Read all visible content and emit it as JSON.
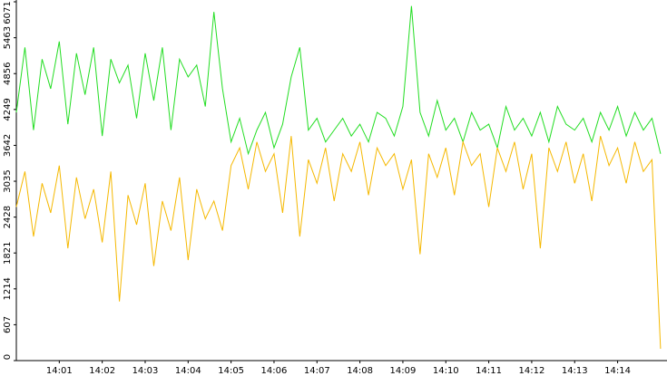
{
  "chart_data": {
    "type": "line",
    "x": [
      0,
      0.2,
      0.4,
      0.6,
      0.8,
      1,
      1.2,
      1.4,
      1.6,
      1.8,
      2,
      2.2,
      2.4,
      2.6,
      2.8,
      3,
      3.2,
      3.4,
      3.6,
      3.8,
      4,
      4.2,
      4.4,
      4.6,
      4.8,
      5,
      5.2,
      5.4,
      5.6,
      5.8,
      6,
      6.2,
      6.4,
      6.6,
      6.8,
      7,
      7.2,
      7.4,
      7.6,
      7.8,
      8,
      8.2,
      8.4,
      8.6,
      8.8,
      9,
      9.2,
      9.4,
      9.6,
      9.8,
      10,
      10.2,
      10.4,
      10.6,
      10.8,
      11,
      11.2,
      11.4,
      11.6,
      11.8,
      12,
      12.2,
      12.4,
      12.6,
      12.8,
      13,
      13.2,
      13.4,
      13.6,
      13.8,
      14,
      14.2,
      14.4,
      14.6,
      14.8,
      15
    ],
    "series": [
      {
        "color": "#22dd22",
        "values": [
          4200,
          5300,
          3900,
          5100,
          4600,
          5400,
          4000,
          5200,
          4500,
          5300,
          3800,
          5100,
          4700,
          5000,
          4100,
          5200,
          4400,
          5300,
          3900,
          5100,
          4800,
          5000,
          4300,
          5900,
          4600,
          3700,
          4100,
          3500,
          3900,
          4200,
          3600,
          4000,
          4800,
          5300,
          3900,
          4100,
          3700,
          3900,
          4100,
          3800,
          4000,
          3700,
          4200,
          4100,
          3800,
          4300,
          6000,
          4200,
          3800,
          4400,
          3900,
          4100,
          3700,
          4200,
          3900,
          4000,
          3600,
          4300,
          3900,
          4100,
          3800,
          4200,
          3700,
          4300,
          4000,
          3900,
          4100,
          3700,
          4200,
          3900,
          4300,
          3800,
          4200,
          3900,
          4100,
          3500
        ]
      },
      {
        "color": "#f5b800",
        "values": [
          2600,
          3200,
          2100,
          3000,
          2500,
          3300,
          1900,
          3100,
          2400,
          2900,
          2000,
          3200,
          1000,
          2800,
          2300,
          3000,
          1600,
          2700,
          2200,
          3100,
          1700,
          2900,
          2400,
          2700,
          2200,
          3300,
          3600,
          2900,
          3700,
          3200,
          3500,
          2500,
          3800,
          2100,
          3400,
          3000,
          3600,
          2700,
          3500,
          3200,
          3700,
          2800,
          3600,
          3300,
          3500,
          2900,
          3400,
          1800,
          3500,
          3100,
          3600,
          2800,
          3700,
          3300,
          3500,
          2600,
          3600,
          3200,
          3700,
          2900,
          3500,
          1900,
          3600,
          3200,
          3700,
          3000,
          3500,
          2700,
          3800,
          3300,
          3600,
          3000,
          3700,
          3200,
          3400,
          200
        ]
      }
    ],
    "xlim": [
      0,
      15.15
    ],
    "xticks": [
      {
        "value": 1,
        "label": "14:01"
      },
      {
        "value": 2,
        "label": "14:02"
      },
      {
        "value": 3,
        "label": "14:03"
      },
      {
        "value": 4,
        "label": "14:04"
      },
      {
        "value": 5,
        "label": "14:05"
      },
      {
        "value": 6,
        "label": "14:06"
      },
      {
        "value": 7,
        "label": "14:07"
      },
      {
        "value": 8,
        "label": "14:08"
      },
      {
        "value": 9,
        "label": "14:09"
      },
      {
        "value": 10,
        "label": "14:10"
      },
      {
        "value": 11,
        "label": "14:11"
      },
      {
        "value": 12,
        "label": "14:12"
      },
      {
        "value": 13,
        "label": "14:13"
      },
      {
        "value": 14,
        "label": "14:14"
      }
    ],
    "ylim": [
      0,
      6071
    ],
    "yticks": [
      0,
      607,
      1214,
      1821,
      2428,
      3035,
      3642,
      4249,
      4856,
      5463,
      6071
    ]
  }
}
